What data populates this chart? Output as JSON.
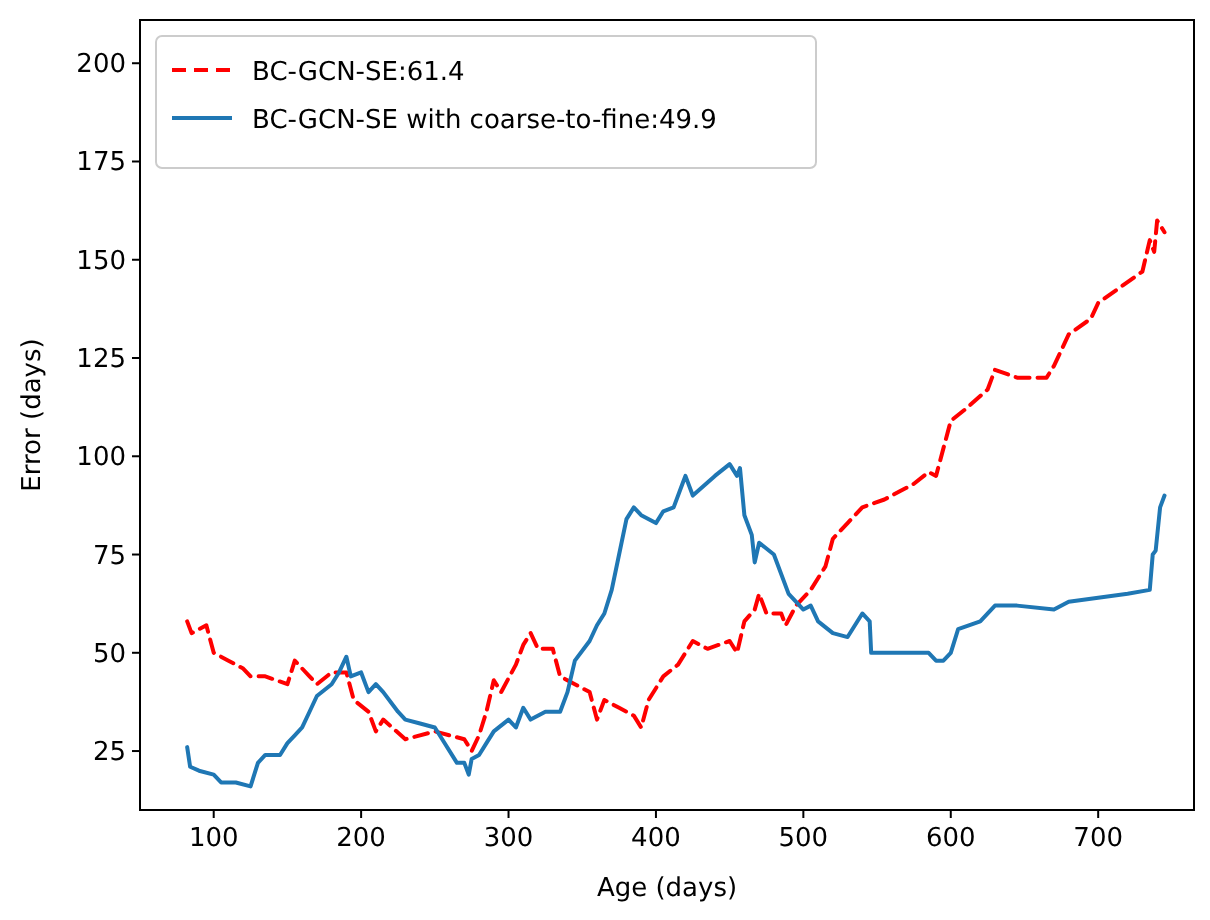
{
  "chart_data": {
    "type": "line",
    "xlabel": "Age (days)",
    "ylabel": "Error (days)",
    "xlim": [
      50,
      765
    ],
    "ylim": [
      10,
      211
    ],
    "xticks": [
      100,
      200,
      300,
      400,
      500,
      600,
      700
    ],
    "yticks": [
      25,
      50,
      75,
      100,
      125,
      150,
      175,
      200
    ],
    "grid": false,
    "legend": "top left",
    "series": [
      {
        "name": "BC-GCN-SE:61.4",
        "color": "#ff0000",
        "line_style": "dashed",
        "x": [
          82,
          85,
          90,
          95,
          100,
          110,
          120,
          125,
          135,
          150,
          155,
          165,
          170,
          180,
          190,
          195,
          205,
          210,
          215,
          230,
          250,
          270,
          275,
          280,
          285,
          290,
          295,
          305,
          310,
          315,
          320,
          330,
          335,
          345,
          355,
          360,
          365,
          375,
          385,
          390,
          395,
          405,
          415,
          425,
          435,
          450,
          455,
          460,
          467,
          470,
          475,
          485,
          488,
          495,
          505,
          515,
          520,
          530,
          540,
          555,
          575,
          585,
          590,
          600,
          610,
          625,
          630,
          645,
          665,
          670,
          680,
          695,
          700,
          730,
          735,
          738,
          740,
          745
        ],
        "values": [
          58,
          55,
          56,
          57,
          50,
          48,
          46,
          44,
          44,
          42,
          48,
          44,
          42,
          45,
          45,
          38,
          35,
          30,
          33,
          28,
          30,
          28,
          25,
          29,
          35,
          43,
          40,
          47,
          52,
          55,
          51,
          51,
          44,
          42,
          40,
          33,
          38,
          36,
          34,
          31,
          38,
          44,
          47,
          53,
          51,
          53,
          50,
          58,
          61,
          65,
          60,
          60,
          57,
          62,
          66,
          72,
          79,
          83,
          87,
          89,
          93,
          96,
          95,
          109,
          112,
          117,
          122,
          120,
          120,
          123,
          131,
          135,
          139,
          147,
          155,
          152,
          160,
          157
        ]
      },
      {
        "name": "BC-GCN-SE with coarse-to-fine:49.9",
        "color": "#1f77b4",
        "line_style": "solid",
        "x": [
          82,
          84,
          90,
          100,
          105,
          115,
          125,
          130,
          135,
          145,
          150,
          155,
          160,
          165,
          170,
          180,
          185,
          190,
          193,
          200,
          205,
          210,
          215,
          225,
          230,
          240,
          250,
          255,
          265,
          270,
          273,
          275,
          280,
          285,
          290,
          300,
          305,
          310,
          315,
          325,
          335,
          340,
          345,
          355,
          360,
          365,
          370,
          375,
          380,
          385,
          390,
          400,
          405,
          412,
          418,
          420,
          425,
          440,
          450,
          455,
          457,
          460,
          465,
          467,
          470,
          480,
          490,
          500,
          505,
          510,
          520,
          530,
          540,
          545,
          546,
          560,
          585,
          590,
          595,
          600,
          605,
          620,
          630,
          645,
          670,
          680,
          700,
          720,
          735,
          737,
          739,
          742,
          745
        ],
        "values": [
          26,
          21,
          20,
          19,
          17,
          17,
          16,
          22,
          24,
          24,
          27,
          29,
          31,
          35,
          39,
          42,
          45,
          49,
          44,
          45,
          40,
          42,
          40,
          35,
          33,
          32,
          31,
          28,
          22,
          22,
          19,
          23,
          24,
          27,
          30,
          33,
          31,
          36,
          33,
          35,
          35,
          40,
          48,
          53,
          57,
          60,
          66,
          75,
          84,
          87,
          85,
          83,
          86,
          87,
          93,
          95,
          90,
          95,
          98,
          95,
          97,
          85,
          80,
          73,
          78,
          75,
          65,
          61,
          62,
          58,
          55,
          54,
          60,
          58,
          50,
          50,
          50,
          48,
          48,
          50,
          56,
          58,
          62,
          62,
          61,
          63,
          64,
          65,
          66,
          75,
          76,
          87,
          90
        ]
      }
    ]
  }
}
